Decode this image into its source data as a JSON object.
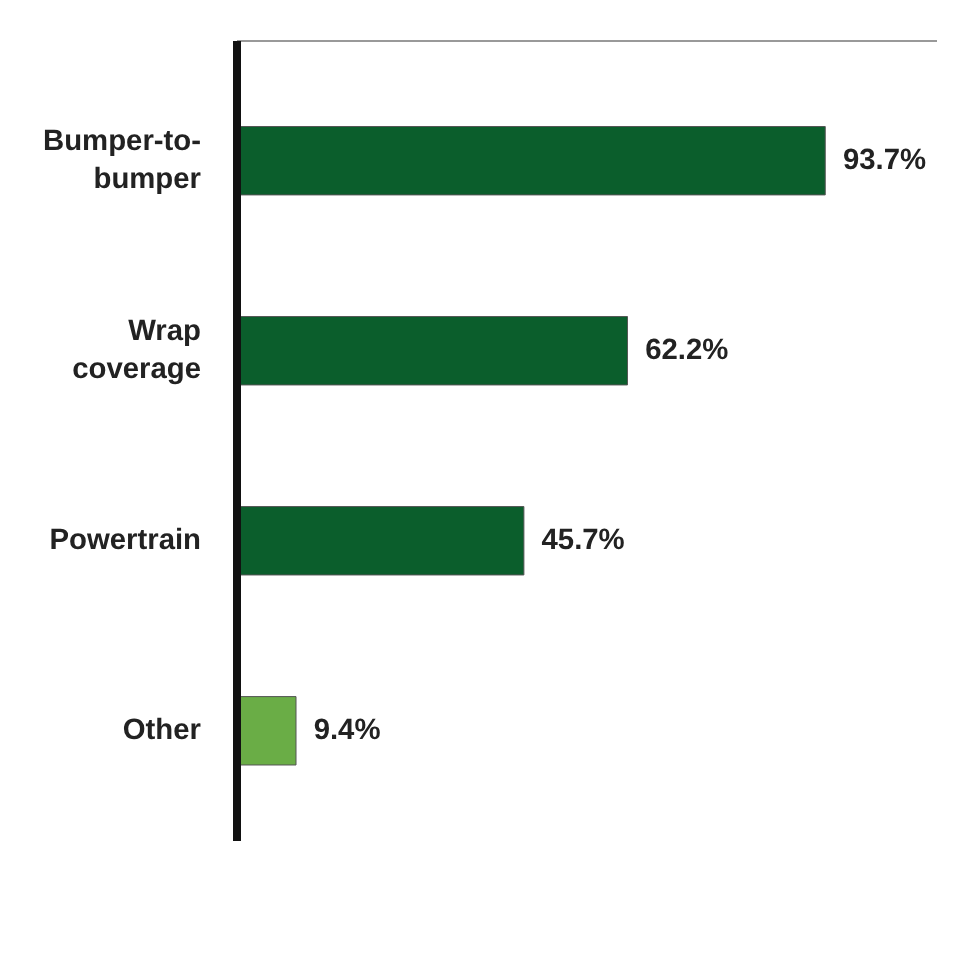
{
  "chart_data": {
    "type": "bar",
    "orientation": "horizontal",
    "categories": [
      "Bumper-to-bumper",
      "Wrap coverage",
      "Powertrain",
      "Other"
    ],
    "values": [
      93.7,
      62.2,
      45.7,
      9.4
    ],
    "colors": [
      "#0b5e2c",
      "#0b5e2c",
      "#0b5e2c",
      "#6aad46"
    ],
    "value_labels": [
      "93.7%",
      "62.2%",
      "45.7%",
      "9.4%"
    ],
    "grid": false
  }
}
